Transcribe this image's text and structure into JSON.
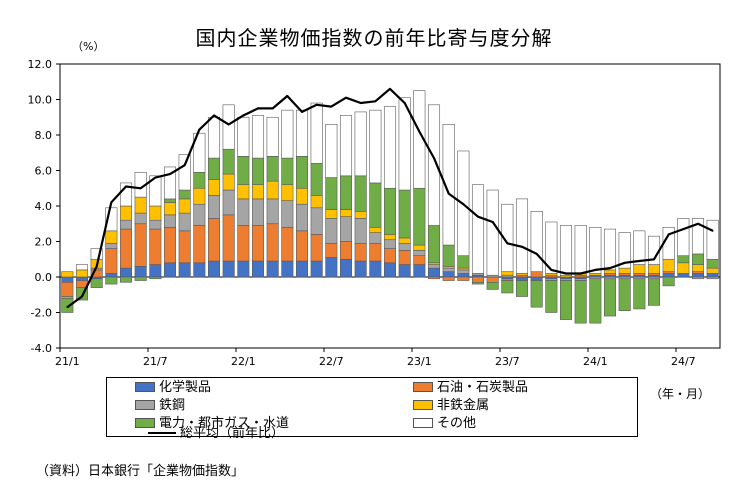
{
  "chart_data": {
    "type": "bar",
    "stacked": true,
    "title": "国内企業物価指数の前年比寄与度分解",
    "ylabel": "（%）",
    "xlabel": "（年・月）",
    "ylim": [
      -4.0,
      12.0
    ],
    "yticks": [
      "12.0",
      "10.0",
      "8.0",
      "6.0",
      "4.0",
      "2.0",
      "0.0",
      "-2.0",
      "-4.0"
    ],
    "xtick_labels": [
      {
        "label": "21/1",
        "index": 0
      },
      {
        "label": "21/7",
        "index": 6
      },
      {
        "label": "22/1",
        "index": 12
      },
      {
        "label": "22/7",
        "index": 18
      },
      {
        "label": "23/1",
        "index": 24
      },
      {
        "label": "23/7",
        "index": 30
      },
      {
        "label": "24/1",
        "index": 36
      },
      {
        "label": "24/7",
        "index": 42
      }
    ],
    "categories": [
      "21/1",
      "21/2",
      "21/3",
      "21/4",
      "21/5",
      "21/6",
      "21/7",
      "21/8",
      "21/9",
      "21/10",
      "21/11",
      "21/12",
      "22/1",
      "22/2",
      "22/3",
      "22/4",
      "22/5",
      "22/6",
      "22/7",
      "22/8",
      "22/9",
      "22/10",
      "22/11",
      "22/12",
      "23/1",
      "23/2",
      "23/3",
      "23/4",
      "23/5",
      "23/6",
      "23/7",
      "23/8",
      "23/9",
      "23/10",
      "23/11",
      "23/12",
      "24/1",
      "24/2",
      "24/3",
      "24/4",
      "24/5",
      "24/6",
      "24/7",
      "24/8",
      "24/9"
    ],
    "series": [
      {
        "name": "化学製品",
        "color": "#4472C4",
        "values": [
          -0.3,
          -0.2,
          -0.1,
          0.2,
          0.5,
          0.6,
          0.7,
          0.8,
          0.8,
          0.8,
          0.9,
          0.9,
          0.9,
          0.9,
          0.9,
          0.9,
          0.9,
          0.9,
          1.1,
          1.0,
          0.9,
          0.9,
          0.8,
          0.7,
          0.7,
          0.5,
          0.3,
          0.2,
          0.1,
          0.0,
          -0.1,
          -0.2,
          -0.2,
          -0.1,
          -0.1,
          -0.1,
          0.1,
          0.1,
          0.1,
          0.1,
          0.1,
          0.2,
          0.2,
          0.2,
          0.2
        ]
      },
      {
        "name": "石油・石炭製品",
        "color": "#ED7D31",
        "values": [
          -0.8,
          -0.4,
          0.4,
          1.4,
          2.2,
          2.4,
          2.0,
          2.0,
          1.8,
          2.1,
          2.4,
          2.6,
          2.0,
          2.0,
          2.1,
          1.9,
          1.7,
          1.5,
          0.8,
          1.0,
          1.0,
          1.0,
          0.8,
          0.8,
          0.5,
          -0.1,
          -0.2,
          -0.2,
          -0.3,
          -0.3,
          -0.1,
          0.1,
          0.3,
          0.1,
          0.0,
          0.1,
          0.0,
          0.1,
          0.1,
          0.1,
          0.1,
          0.1,
          0.0,
          0.1,
          0.0
        ]
      },
      {
        "name": "鉄鋼",
        "color": "#A5A5A5",
        "values": [
          -0.1,
          0.0,
          0.1,
          0.3,
          0.5,
          0.6,
          0.5,
          0.7,
          1.0,
          1.2,
          1.3,
          1.4,
          1.5,
          1.5,
          1.4,
          1.5,
          1.5,
          1.5,
          1.4,
          1.4,
          1.4,
          0.6,
          0.5,
          0.4,
          0.3,
          0.2,
          0.2,
          0.2,
          0.1,
          0.1,
          0.1,
          0.0,
          0.0,
          -0.1,
          -0.1,
          -0.1,
          -0.1,
          -0.1,
          -0.1,
          -0.1,
          -0.1,
          0.0,
          0.0,
          -0.1,
          -0.1
        ]
      },
      {
        "name": "非鉄金属",
        "color": "#FFC000",
        "values": [
          0.3,
          0.4,
          0.5,
          0.7,
          0.8,
          0.9,
          0.8,
          0.7,
          0.8,
          0.9,
          0.9,
          0.9,
          0.8,
          0.8,
          1.0,
          0.9,
          0.9,
          0.7,
          0.5,
          0.4,
          0.4,
          0.3,
          0.3,
          0.3,
          0.3,
          0.1,
          0.1,
          0.1,
          0.0,
          0.0,
          0.2,
          0.1,
          0.0,
          0.1,
          0.1,
          0.1,
          0.1,
          0.2,
          0.3,
          0.5,
          0.5,
          0.7,
          0.6,
          0.4,
          0.3
        ]
      },
      {
        "name": "電力・都市ガス・水道",
        "color": "#70AD47",
        "values": [
          -0.8,
          -0.7,
          -0.5,
          -0.4,
          -0.3,
          -0.2,
          -0.1,
          0.2,
          0.5,
          0.9,
          1.2,
          1.4,
          1.6,
          1.5,
          1.4,
          1.5,
          1.8,
          1.8,
          1.8,
          1.9,
          2.0,
          2.5,
          2.6,
          2.7,
          3.2,
          2.1,
          1.2,
          0.7,
          -0.1,
          -0.4,
          -0.7,
          -0.9,
          -1.5,
          -1.8,
          -2.2,
          -2.4,
          -2.5,
          -2.1,
          -1.8,
          -1.7,
          -1.5,
          -0.5,
          0.4,
          0.6,
          0.5
        ]
      },
      {
        "name": "その他",
        "color": "#FFFFFF",
        "values": [
          0.0,
          0.3,
          0.6,
          1.3,
          1.3,
          1.4,
          1.7,
          1.8,
          2.0,
          2.2,
          2.3,
          2.5,
          2.2,
          2.4,
          2.2,
          2.7,
          2.6,
          3.4,
          3.0,
          3.4,
          3.6,
          4.1,
          4.6,
          5.2,
          5.5,
          6.8,
          6.8,
          5.9,
          5.0,
          4.8,
          3.8,
          4.2,
          3.4,
          2.9,
          2.8,
          2.7,
          2.6,
          2.3,
          2.0,
          1.9,
          1.6,
          1.8,
          2.1,
          2.0,
          2.2
        ]
      }
    ],
    "line": {
      "name": "総平均（前年比）",
      "color": "#000000",
      "values": [
        -1.7,
        -1.1,
        0.6,
        4.2,
        5.1,
        5.0,
        5.6,
        5.8,
        6.3,
        8.3,
        9.1,
        8.6,
        9.1,
        9.5,
        9.5,
        10.2,
        9.3,
        9.7,
        9.6,
        10.1,
        9.8,
        9.9,
        10.6,
        9.8,
        8.2,
        6.7,
        4.7,
        4.1,
        3.4,
        3.1,
        1.9,
        1.7,
        1.3,
        0.4,
        0.2,
        0.2,
        0.4,
        0.5,
        0.8,
        0.9,
        1.0,
        2.4,
        2.7,
        3.0,
        2.6
      ]
    }
  },
  "legend": {
    "items": [
      "化学製品",
      "石油・石炭製品",
      "鉄鋼",
      "非鉄金属",
      "電力・都市ガス・水道",
      "その他",
      "総平均（前年比）"
    ]
  },
  "source": "（資料）日本銀行「企業物価指数」"
}
